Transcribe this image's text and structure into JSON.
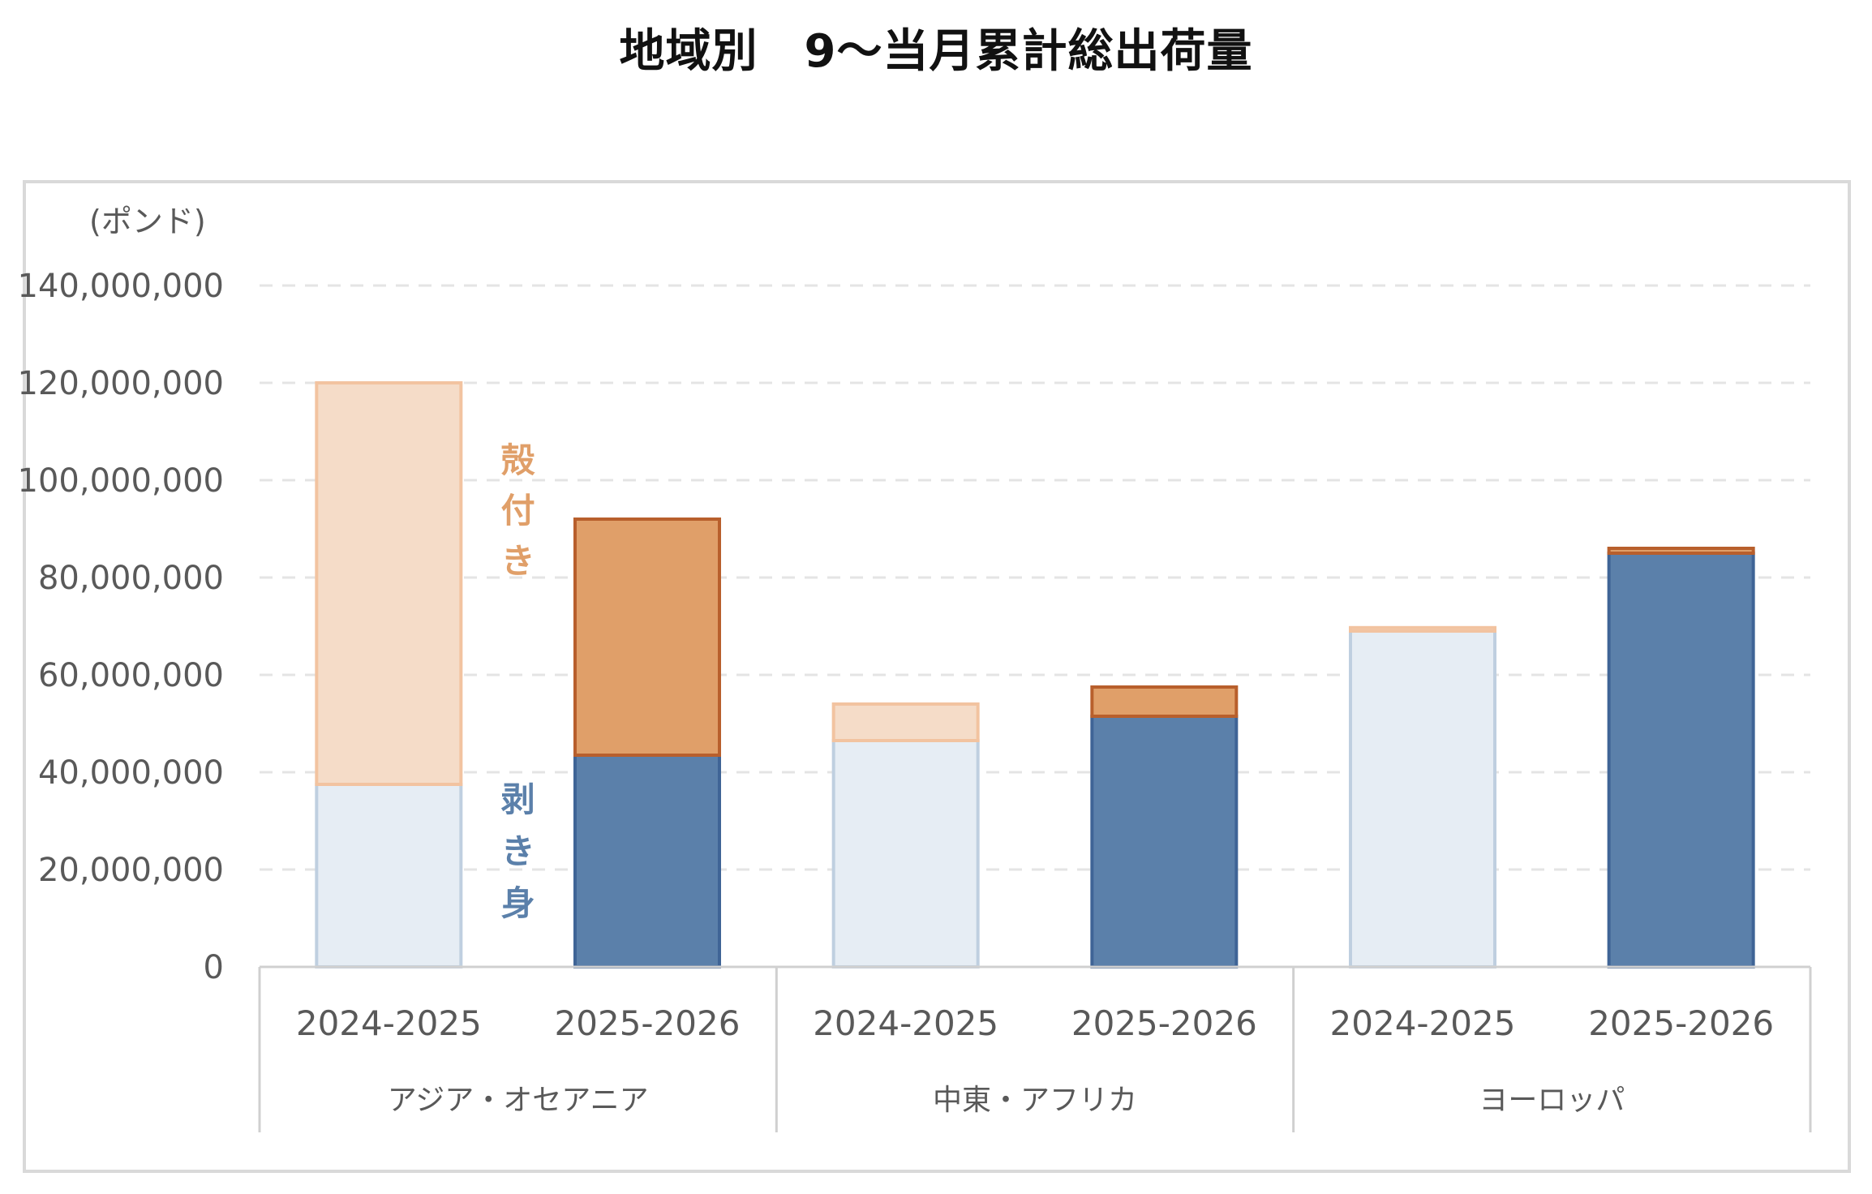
{
  "title": "地域別　9～当月累計総出荷量",
  "chart_data": {
    "type": "bar",
    "stacked": true,
    "unit_label": "(ポンド)",
    "ylim": [
      0,
      140000000
    ],
    "y_ticks": [
      "0",
      "20,000,000",
      "40,000,000",
      "60,000,000",
      "80,000,000",
      "100,000,000",
      "120,000,000",
      "140,000,000"
    ],
    "grid": true,
    "groups": [
      {
        "name": "アジア・オセアニア",
        "bars": [
          {
            "label": "2024-2025",
            "values": {
              "shucked": 37500000,
              "in_shell": 82500000
            },
            "highlight": false
          },
          {
            "label": "2025-2026",
            "values": {
              "shucked": 43500000,
              "in_shell": 48500000
            },
            "highlight": true
          }
        ]
      },
      {
        "name": "中東・アフリカ",
        "bars": [
          {
            "label": "2024-2025",
            "values": {
              "shucked": 46500000,
              "in_shell": 7500000
            },
            "highlight": false
          },
          {
            "label": "2025-2026",
            "values": {
              "shucked": 51500000,
              "in_shell": 6000000
            },
            "highlight": true
          }
        ]
      },
      {
        "name": "ヨーロッパ",
        "bars": [
          {
            "label": "2024-2025",
            "values": {
              "shucked": 69000000,
              "in_shell": 700000
            },
            "highlight": false
          },
          {
            "label": "2025-2026",
            "values": {
              "shucked": 85000000,
              "in_shell": 1000000
            },
            "highlight": true
          }
        ]
      }
    ],
    "series": [
      {
        "key": "in_shell",
        "name": "殻付き",
        "colors": {
          "prev_fill": "#f5dcc8",
          "prev_stroke": "#f2c3a0",
          "cur_fill": "#e09f69",
          "cur_stroke": "#b85f2c"
        }
      },
      {
        "key": "shucked",
        "name": "剥き身",
        "colors": {
          "prev_fill": "#e6edf4",
          "prev_stroke": "#bfcfe0",
          "cur_fill": "#5b80aa",
          "cur_stroke": "#3f6496"
        }
      }
    ],
    "annotations": {
      "in_shell_label": [
        "殻",
        "付",
        "き"
      ],
      "shucked_label": [
        "剥",
        "き",
        "身"
      ],
      "in_shell_color": "#e09f69",
      "shucked_color": "#5b80aa"
    }
  }
}
